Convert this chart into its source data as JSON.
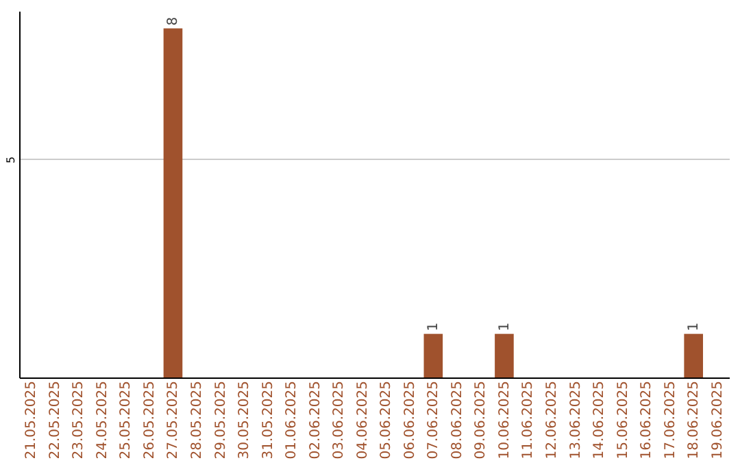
{
  "chart_data": {
    "type": "bar",
    "categories": [
      "21.05.2025",
      "22.05.2025",
      "23.05.2025",
      "24.05.2025",
      "25.05.2025",
      "26.05.2025",
      "27.05.2025",
      "28.05.2025",
      "29.05.2025",
      "30.05.2025",
      "31.05.2025",
      "01.06.2025",
      "02.06.2025",
      "03.06.2025",
      "04.06.2025",
      "05.06.2025",
      "06.06.2025",
      "07.06.2025",
      "08.06.2025",
      "09.06.2025",
      "10.06.2025",
      "11.06.2025",
      "12.06.2025",
      "13.06.2025",
      "14.06.2025",
      "15.06.2025",
      "16.06.2025",
      "17.06.2025",
      "18.06.2025",
      "19.06.2025"
    ],
    "values": [
      0,
      0,
      0,
      0,
      0,
      0,
      8,
      0,
      0,
      0,
      0,
      0,
      0,
      0,
      0,
      0,
      0,
      1,
      0,
      0,
      1,
      0,
      0,
      0,
      0,
      0,
      0,
      0,
      1,
      0
    ],
    "value_labels": [
      null,
      null,
      null,
      null,
      null,
      null,
      "8",
      null,
      null,
      null,
      null,
      null,
      null,
      null,
      null,
      null,
      null,
      "1",
      null,
      null,
      "1",
      null,
      null,
      null,
      null,
      null,
      null,
      null,
      "1",
      null
    ],
    "color": "#a0522d",
    "ylim": [
      0,
      8.4
    ],
    "yticks": [
      5
    ],
    "grid": "y"
  }
}
